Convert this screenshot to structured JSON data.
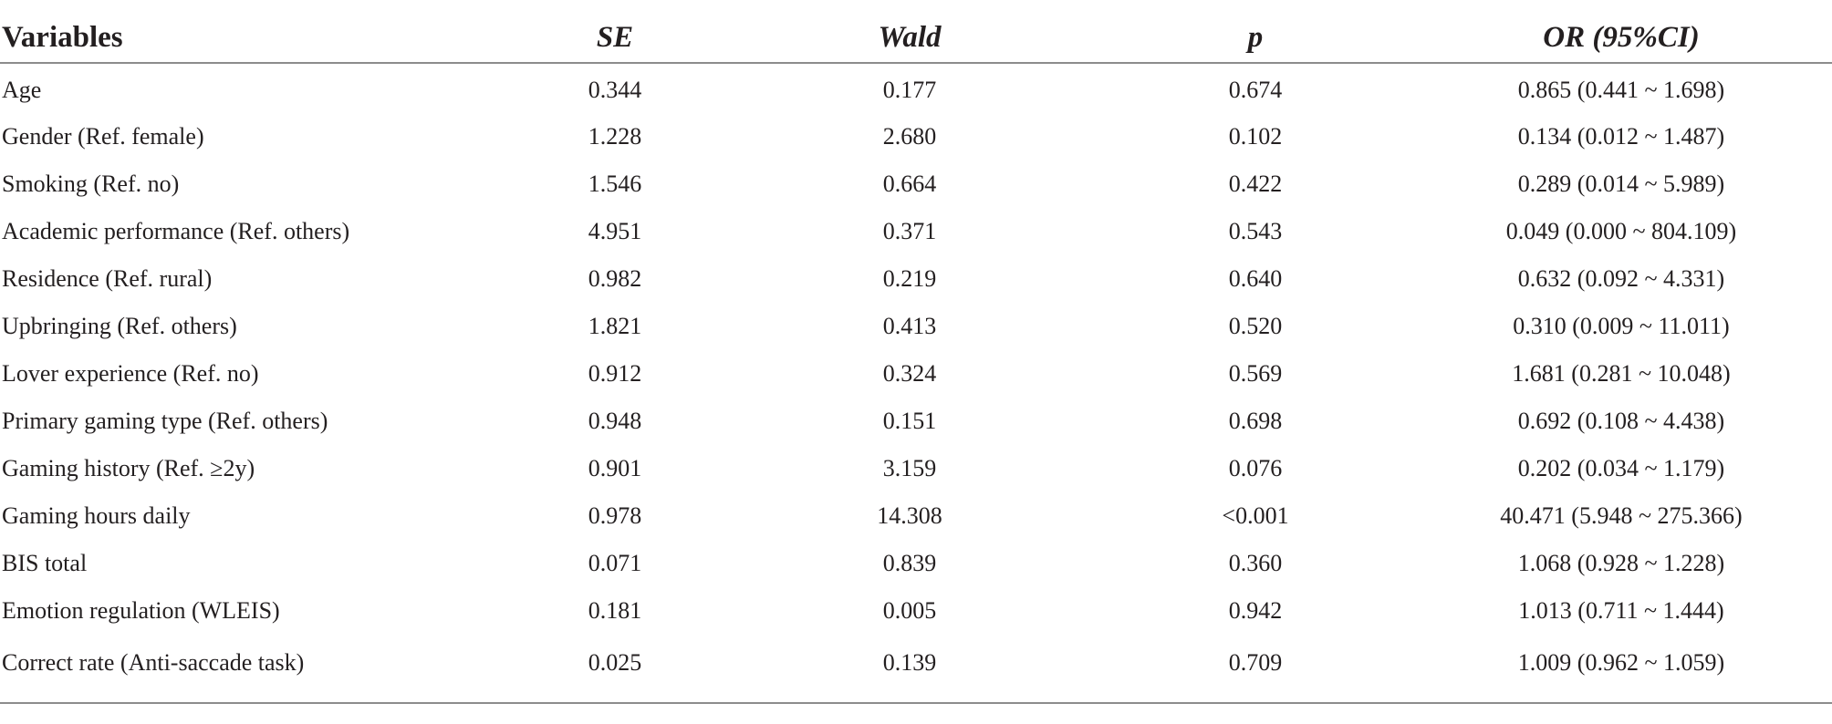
{
  "table": {
    "headers": {
      "variables": "Variables",
      "se": "SE",
      "wald": "Wald",
      "p": "p",
      "or_label": "OR",
      "or_ci": " (95%CI)"
    },
    "rows": [
      {
        "variable": "Age",
        "se": "0.344",
        "wald": "0.177",
        "p": "0.674",
        "or": "0.865 (0.441 ~ 1.698)"
      },
      {
        "variable": "Gender (Ref. female)",
        "se": "1.228",
        "wald": "2.680",
        "p": "0.102",
        "or": "0.134 (0.012 ~ 1.487)"
      },
      {
        "variable": "Smoking (Ref. no)",
        "se": "1.546",
        "wald": "0.664",
        "p": "0.422",
        "or": "0.289 (0.014 ~ 5.989)"
      },
      {
        "variable": "Academic performance (Ref. others)",
        "se": "4.951",
        "wald": "0.371",
        "p": "0.543",
        "or": "0.049 (0.000 ~ 804.109)"
      },
      {
        "variable": "Residence (Ref. rural)",
        "se": "0.982",
        "wald": "0.219",
        "p": "0.640",
        "or": "0.632 (0.092 ~ 4.331)"
      },
      {
        "variable": "Upbringing (Ref. others)",
        "se": "1.821",
        "wald": "0.413",
        "p": "0.520",
        "or": "0.310 (0.009 ~ 11.011)"
      },
      {
        "variable": "Lover experience (Ref. no)",
        "se": "0.912",
        "wald": "0.324",
        "p": "0.569",
        "or": "1.681 (0.281 ~ 10.048)"
      },
      {
        "variable": "Primary gaming type (Ref. others)",
        "se": "0.948",
        "wald": "0.151",
        "p": "0.698",
        "or": "0.692 (0.108 ~ 4.438)"
      },
      {
        "variable": "Gaming history (Ref. ≥2y)",
        "se": "0.901",
        "wald": "3.159",
        "p": "0.076",
        "or": "0.202 (0.034 ~ 1.179)"
      },
      {
        "variable": "Gaming hours daily",
        "se": "0.978",
        "wald": "14.308",
        "p": "<0.001",
        "or": "40.471 (5.948 ~ 275.366)"
      },
      {
        "variable": "BIS total",
        "se": "0.071",
        "wald": "0.839",
        "p": "0.360",
        "or": "1.068 (0.928 ~ 1.228)"
      },
      {
        "variable": "Emotion regulation (WLEIS)",
        "se": "0.181",
        "wald": "0.005",
        "p": "0.942",
        "or": "1.013 (0.711 ~ 1.444)"
      },
      {
        "variable": "Correct rate (Anti-saccade task)",
        "se": "0.025",
        "wald": "0.139",
        "p": "0.709",
        "or": "1.009 (0.962 ~ 1.059)"
      }
    ]
  }
}
